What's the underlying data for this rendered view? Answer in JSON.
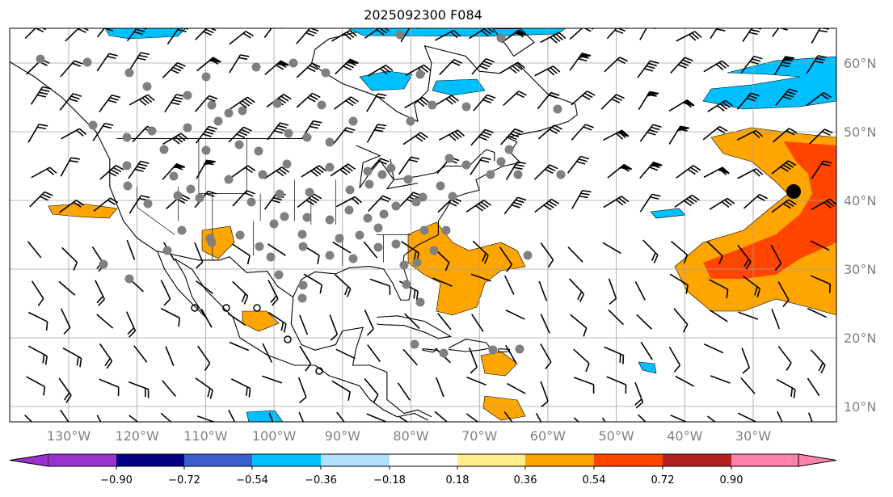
{
  "title": "2025092300 F084",
  "map": {
    "lon_labels": [
      "130°W",
      "120°W",
      "110°W",
      "100°W",
      "90°W",
      "80°W",
      "70°W",
      "60°W",
      "50°W",
      "40°W",
      "30°W"
    ],
    "lon_values": [
      -130,
      -120,
      -110,
      -100,
      -90,
      -80,
      -70,
      -60,
      -50,
      -40,
      -30
    ],
    "lat_labels": [
      "60°N",
      "50°N",
      "40°N",
      "30°N",
      "20°N",
      "10°N"
    ],
    "lat_values": [
      60,
      50,
      40,
      30,
      20,
      10
    ],
    "extent": {
      "lon": [
        -138,
        -17
      ],
      "lat": [
        8,
        65
      ]
    }
  },
  "colorbar": {
    "ticks": [
      "−0.90",
      "−0.72",
      "−0.54",
      "−0.36",
      "−0.18",
      "0.18",
      "0.36",
      "0.54",
      "0.72",
      "0.90"
    ],
    "colors": [
      "#9932cc",
      "#000080",
      "#3a5fcd",
      "#00bfff",
      "#b0e2ff",
      "#ffffff",
      "#ffec8b",
      "#ffa500",
      "#ff4500",
      "#b22222",
      "#ff82ab"
    ],
    "extend": "both"
  }
}
